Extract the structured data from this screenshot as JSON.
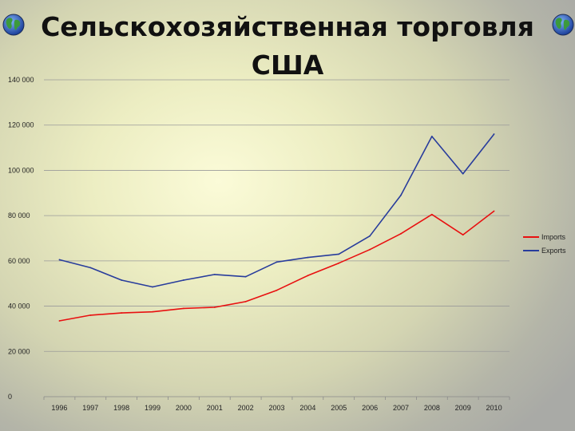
{
  "slide": {
    "title_line1": "Сельскохозяйственная торговля",
    "title_line2": "США"
  },
  "chart_data": {
    "type": "line",
    "x": [
      "1996",
      "1997",
      "1998",
      "1999",
      "2000",
      "2001",
      "2002",
      "2003",
      "2004",
      "2005",
      "2006",
      "2007",
      "2008",
      "2009",
      "2010"
    ],
    "series": [
      {
        "name": "Imports",
        "color": "#e81010",
        "values": [
          33500,
          36000,
          37000,
          37500,
          39000,
          39500,
          42000,
          47000,
          53500,
          59000,
          65000,
          72000,
          80500,
          71500,
          82000
        ]
      },
      {
        "name": "Exports",
        "color": "#283c9c",
        "values": [
          60500,
          57000,
          51500,
          48500,
          51500,
          54000,
          53000,
          59500,
          61500,
          63000,
          71000,
          89000,
          115000,
          98500,
          116000
        ]
      }
    ],
    "ylim": [
      0,
      140000
    ],
    "yticks": [
      "0",
      "20 000",
      "40 000",
      "60 000",
      "80 000",
      "100 000",
      "120 000",
      "140 000"
    ],
    "ytick_values": [
      0,
      20000,
      40000,
      60000,
      80000,
      100000,
      120000,
      140000
    ],
    "grid": true,
    "legend_position": "right",
    "xlabel": "",
    "ylabel": ""
  }
}
